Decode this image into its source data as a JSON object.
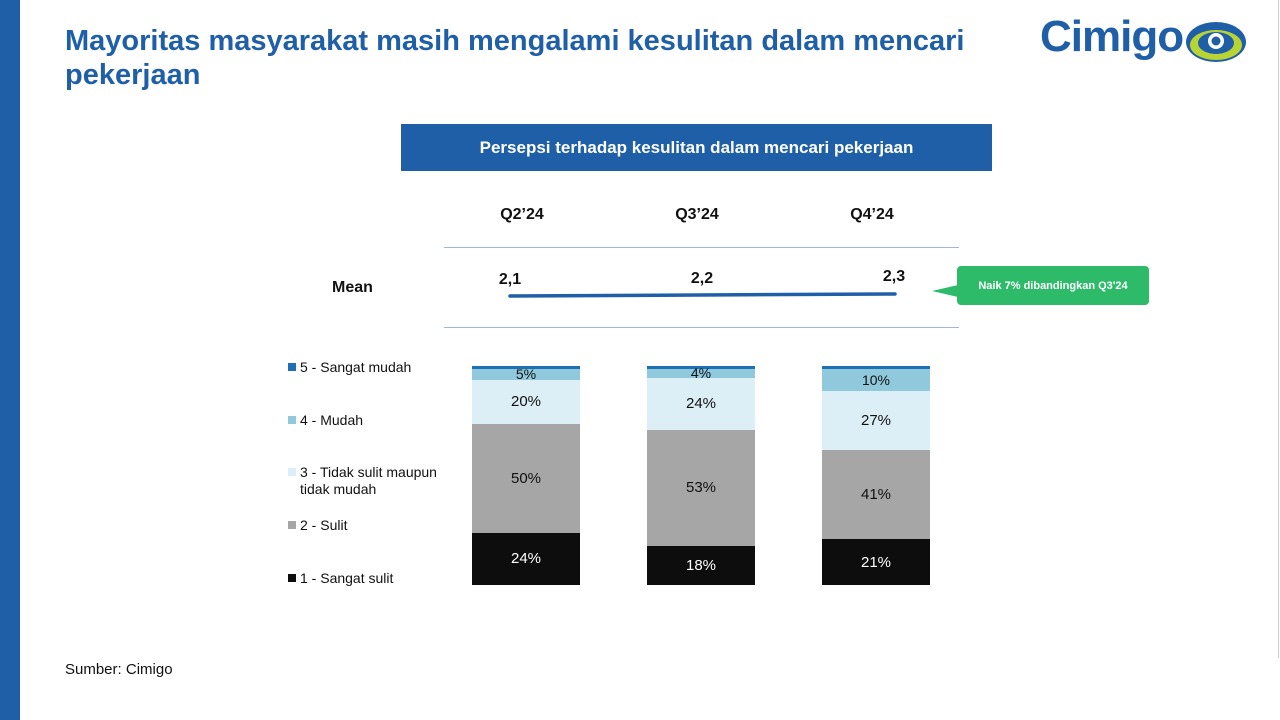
{
  "title": "Mayoritas masyarakat masih mengalami kesulitan dalam mencari pekerjaan",
  "logo": {
    "text": "Cimigo"
  },
  "chart_header": "Persepsi terhadap kesulitan dalam mencari pekerjaan",
  "mean_label": "Mean",
  "callout": "Naik 7% dibandingkan Q3'24",
  "source": "Sumber: Cimigo",
  "colors": {
    "accent": "#1f5fa8",
    "callout": "#2dbb6a",
    "seg5": "#1f6fb5",
    "seg4": "#91c9dc",
    "seg3": "#dceef6",
    "seg2": "#a6a6a6",
    "seg1": "#0d0d0d"
  },
  "chart_data": {
    "type": "bar",
    "stacked": true,
    "percent": true,
    "categories": [
      "Q2’24",
      "Q3’24",
      "Q4’24"
    ],
    "mean": {
      "label": "Mean",
      "values": [
        2.1,
        2.2,
        2.3
      ],
      "labels": [
        "2,1",
        "2,2",
        "2,3"
      ]
    },
    "series": [
      {
        "name": "5 - Sangat mudah",
        "values": [
          1,
          0,
          1
        ],
        "labels": [
          "",
          "",
          ""
        ]
      },
      {
        "name": "4 - Mudah",
        "values": [
          5,
          4,
          10
        ],
        "labels": [
          "5%",
          "4%",
          "10%"
        ]
      },
      {
        "name": "3 - Tidak sulit maupun tidak mudah",
        "values": [
          20,
          24,
          27
        ],
        "labels": [
          "20%",
          "24%",
          "27%"
        ]
      },
      {
        "name": "2 - Sulit",
        "values": [
          50,
          53,
          41
        ],
        "labels": [
          "50%",
          "53%",
          "41%"
        ]
      },
      {
        "name": "1 - Sangat sulit",
        "values": [
          24,
          18,
          21
        ],
        "labels": [
          "24%",
          "18%",
          "21%"
        ]
      }
    ],
    "legend_position": "left"
  }
}
